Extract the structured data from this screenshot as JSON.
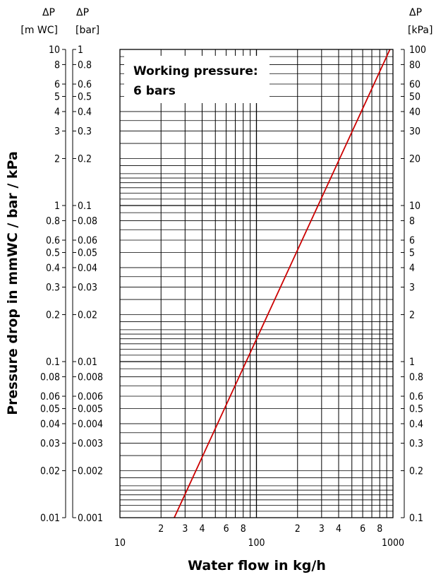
{
  "chart_data": {
    "type": "line",
    "scale": "log-log",
    "grid": true,
    "xlabel": "Water flow in kg/h",
    "ylabel": "Pressure drop in mmWC / bar / kPa",
    "xlim": [
      10,
      1000
    ],
    "ylim_mwc": [
      0.01,
      10
    ],
    "x_major_labels": [
      "10",
      "100",
      "1000"
    ],
    "x_minor_labels": [
      "2",
      "3",
      "4",
      "6",
      "8",
      "2",
      "3",
      "4",
      "6",
      "8"
    ],
    "x_minor_values": [
      20,
      30,
      40,
      60,
      80,
      200,
      300,
      400,
      600,
      800
    ],
    "y_tick_values_mwc": [
      0.01,
      0.02,
      0.03,
      0.04,
      0.05,
      0.06,
      0.08,
      0.1,
      0.2,
      0.3,
      0.4,
      0.5,
      0.6,
      0.8,
      1,
      2,
      3,
      4,
      5,
      6,
      8,
      10
    ],
    "axes": {
      "left_outer": {
        "header_symbol": "ΔP",
        "header_unit": "[m WC]",
        "labels": [
          "0.01",
          "0.02",
          "0.03",
          "0.04",
          "0.05",
          "0.06",
          "0.08",
          "0.1",
          "0.2",
          "0.3",
          "0.4",
          "0.5",
          "0.6",
          "0.8",
          "1",
          "2",
          "3",
          "4",
          "5",
          "6",
          "8",
          "10"
        ]
      },
      "left_inner": {
        "header_symbol": "ΔP",
        "header_unit": "[bar]",
        "labels": [
          "0.001",
          "0.002",
          "0.003",
          "0.004",
          "0.005",
          "0.006",
          "0.008",
          "0.01",
          "0.02",
          "0.03",
          "0.04",
          "0.05",
          "0.06",
          "0.08",
          "0.1",
          "0.2",
          "0.3",
          "0.4",
          "0.5",
          "0.6",
          "0.8",
          "1"
        ]
      },
      "right": {
        "header_symbol": "ΔP",
        "header_unit": "[kPa]",
        "labels": [
          "0.1",
          "0.2",
          "0.3",
          "0.4",
          "0.5",
          "0.6",
          "0.8",
          "1",
          "2",
          "3",
          "4",
          "5",
          "6",
          "8",
          "10",
          "20",
          "30",
          "40",
          "50",
          "60",
          "80",
          "100"
        ]
      }
    },
    "annotation": {
      "line1": "Working pressure:",
      "line2": "6 bars"
    },
    "series": [
      {
        "color": "#cc0000",
        "x": [
          25,
          950
        ],
        "y_mwc": [
          0.01,
          10
        ]
      }
    ]
  }
}
